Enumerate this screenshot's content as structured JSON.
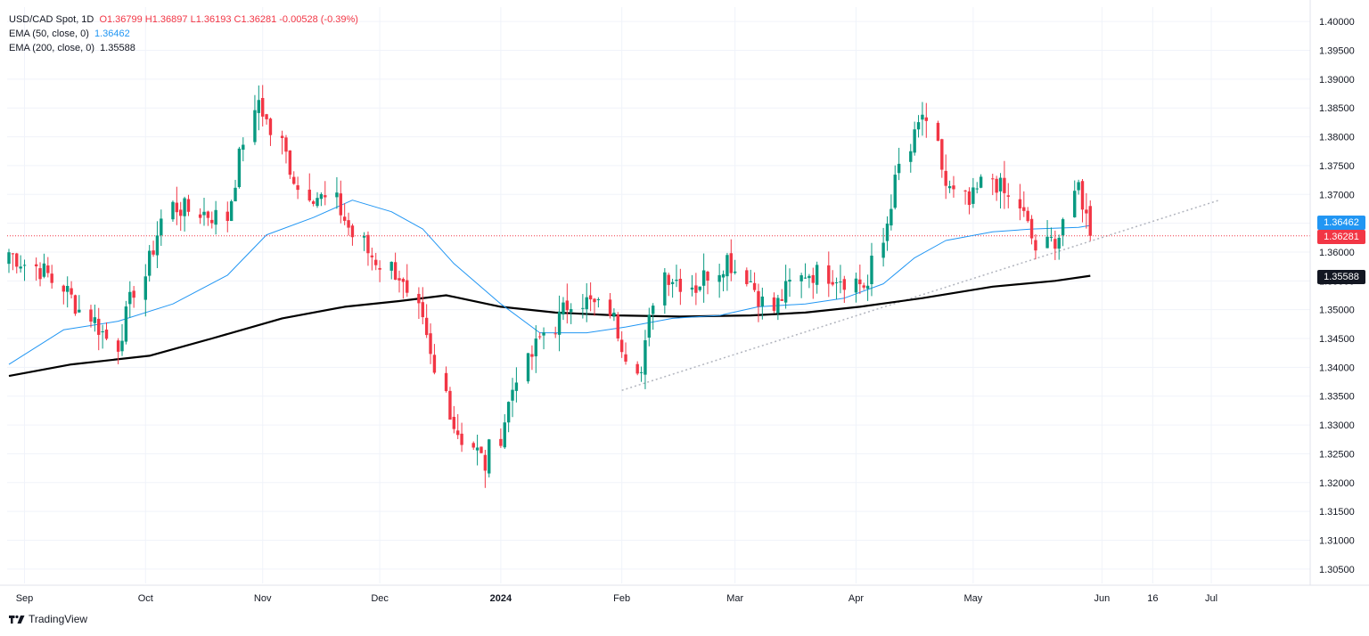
{
  "legend": {
    "symbol": "USD/CAD Spot, 1D",
    "ohlc": "O1.36799 H1.36897 L1.36193 C1.36281 -0.00528 (-0.39%)",
    "ema50_label": "EMA (50, close, 0)",
    "ema50_value": "1.36462",
    "ema200_label": "EMA (200, close, 0)",
    "ema200_value": "1.35588"
  },
  "price_tags": {
    "ema50": "1.36462",
    "last": "1.36281",
    "ema200": "1.35588"
  },
  "brand": {
    "name": "TradingView"
  },
  "colors": {
    "up": "#089981",
    "down": "#f23645",
    "ema50": "#2196f3",
    "ema200": "#000000",
    "grid": "#f0f3fa",
    "trendline": "#b2b5be"
  },
  "chart_data": {
    "type": "candlestick",
    "title": "USD/CAD Spot, 1D",
    "xlabel": "",
    "ylabel": "",
    "ylim": [
      1.3025,
      1.4025
    ],
    "y_ticks": [
      "1.40000",
      "1.39500",
      "1.39000",
      "1.38500",
      "1.38000",
      "1.37500",
      "1.37000",
      "1.36500",
      "1.36000",
      "1.35500",
      "1.35000",
      "1.34500",
      "1.34000",
      "1.33500",
      "1.33000",
      "1.32500",
      "1.32000",
      "1.31500",
      "1.31000",
      "1.30500"
    ],
    "x_ticks": [
      {
        "label": "Sep",
        "date": "2023-09-01"
      },
      {
        "label": "Oct",
        "date": "2023-10-02"
      },
      {
        "label": "Nov",
        "date": "2023-11-01"
      },
      {
        "label": "Dec",
        "date": "2023-12-01"
      },
      {
        "label": "2024",
        "date": "2024-01-01"
      },
      {
        "label": "Feb",
        "date": "2024-02-01"
      },
      {
        "label": "Mar",
        "date": "2024-03-01"
      },
      {
        "label": "Apr",
        "date": "2024-04-01"
      },
      {
        "label": "May",
        "date": "2024-05-01"
      },
      {
        "label": "Jun",
        "date": "2024-06-03"
      },
      {
        "label": "16",
        "date": "2024-06-16"
      },
      {
        "label": "Jul",
        "date": "2024-07-01"
      }
    ],
    "series": [
      {
        "name": "USD/CAD",
        "type": "candlestick",
        "dates_start": "2023-08-28",
        "dates_end": "2024-05-31",
        "anchor_closes": [
          [
            0,
            1.36
          ],
          [
            8,
            1.356
          ],
          [
            20,
            1.344
          ],
          [
            30,
            1.368
          ],
          [
            40,
            1.366
          ],
          [
            46,
            1.3865
          ],
          [
            54,
            1.371
          ],
          [
            60,
            1.3685
          ],
          [
            66,
            1.36
          ],
          [
            72,
            1.356
          ],
          [
            76,
            1.347
          ],
          [
            82,
            1.33
          ],
          [
            88,
            1.323
          ],
          [
            94,
            1.339
          ],
          [
            98,
            1.345
          ],
          [
            104,
            1.352
          ],
          [
            110,
            1.35
          ],
          [
            116,
            1.339
          ],
          [
            120,
            1.3565
          ],
          [
            126,
            1.354
          ],
          [
            132,
            1.359
          ],
          [
            136,
            1.355
          ],
          [
            140,
            1.35
          ],
          [
            146,
            1.3565
          ],
          [
            152,
            1.356
          ],
          [
            158,
            1.354
          ],
          [
            162,
            1.369
          ],
          [
            165,
            1.3775
          ],
          [
            168,
            1.384
          ],
          [
            172,
            1.3715
          ],
          [
            176,
            1.368
          ],
          [
            180,
            1.373
          ],
          [
            185,
            1.368
          ],
          [
            189,
            1.3605
          ],
          [
            193,
            1.363
          ],
          [
            196,
            1.3715
          ],
          [
            198,
            1.366
          ],
          [
            200,
            1.372
          ],
          [
            201,
            1.368
          ],
          [
            202,
            1.36281
          ]
        ],
        "last_bar": {
          "open": 1.36799,
          "high": 1.36897,
          "low": 1.36193,
          "close": 1.36281
        }
      },
      {
        "name": "EMA (50, close, 0)",
        "type": "line",
        "color": "#2196f3",
        "points": [
          [
            0,
            1.3405
          ],
          [
            10,
            1.3465
          ],
          [
            20,
            1.348
          ],
          [
            30,
            1.351
          ],
          [
            40,
            1.356
          ],
          [
            48,
            1.363
          ],
          [
            56,
            1.366
          ],
          [
            64,
            1.369
          ],
          [
            70,
            1.367
          ],
          [
            76,
            1.364
          ],
          [
            82,
            1.358
          ],
          [
            90,
            1.351
          ],
          [
            98,
            1.346
          ],
          [
            106,
            1.346
          ],
          [
            114,
            1.347
          ],
          [
            122,
            1.3485
          ],
          [
            130,
            1.349
          ],
          [
            138,
            1.3505
          ],
          [
            146,
            1.351
          ],
          [
            154,
            1.352
          ],
          [
            160,
            1.3545
          ],
          [
            166,
            1.359
          ],
          [
            172,
            1.362
          ],
          [
            180,
            1.3635
          ],
          [
            188,
            1.364
          ],
          [
            196,
            1.3643
          ],
          [
            202,
            1.36462
          ]
        ]
      },
      {
        "name": "EMA (200, close, 0)",
        "type": "line",
        "color": "#000000",
        "points": [
          [
            0,
            1.3385
          ],
          [
            12,
            1.3405
          ],
          [
            26,
            1.342
          ],
          [
            38,
            1.345
          ],
          [
            50,
            1.3485
          ],
          [
            62,
            1.3505
          ],
          [
            72,
            1.3515
          ],
          [
            80,
            1.3525
          ],
          [
            90,
            1.3505
          ],
          [
            100,
            1.3495
          ],
          [
            112,
            1.349
          ],
          [
            124,
            1.3488
          ],
          [
            136,
            1.349
          ],
          [
            146,
            1.3495
          ],
          [
            156,
            1.3505
          ],
          [
            168,
            1.352
          ],
          [
            180,
            1.354
          ],
          [
            192,
            1.355
          ],
          [
            202,
            1.35588
          ]
        ]
      },
      {
        "name": "Support trendline",
        "type": "dotted-line",
        "color": "#b2b5be",
        "points": [
          [
            "2024-02-01",
            1.336
          ],
          [
            "2024-07-03",
            1.369
          ]
        ]
      },
      {
        "name": "Last price line",
        "type": "horizontal-dotted",
        "color": "#f23645",
        "value": 1.36281
      }
    ]
  }
}
